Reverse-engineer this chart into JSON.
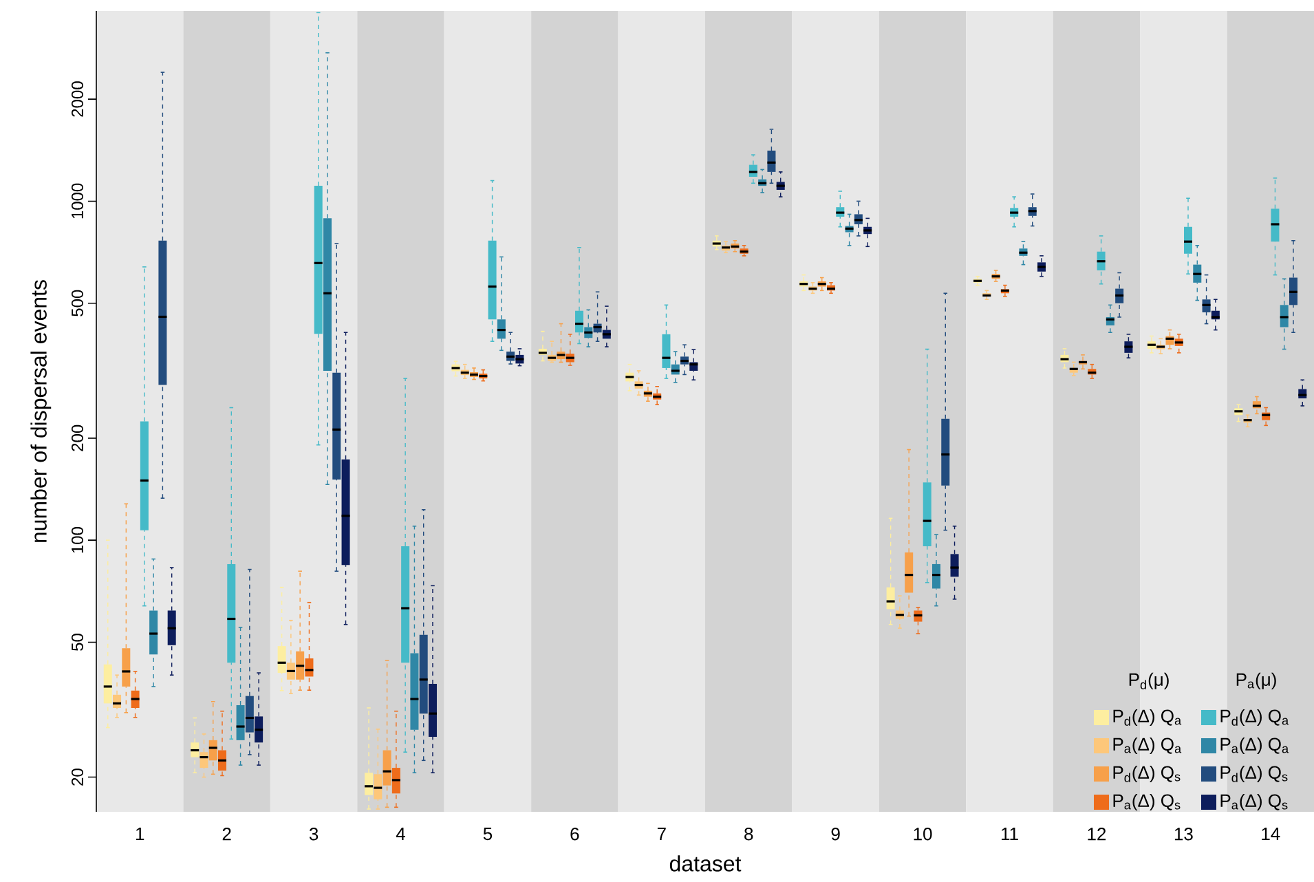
{
  "chart_data": {
    "type": "box",
    "xlabel": "dataset",
    "ylabel": "number of dispersal events",
    "categories": [
      "1",
      "2",
      "3",
      "4",
      "5",
      "6",
      "7",
      "8",
      "9",
      "10",
      "11",
      "12",
      "13",
      "14"
    ],
    "log": true,
    "ylim": [
      15.8,
      3640
    ],
    "yticks": [
      20,
      50,
      100,
      200,
      500,
      1000,
      2000
    ],
    "legend": "bottom right",
    "annotations": [
      "P$_{d}$(μ)",
      "P$_{a}$(μ)"
    ],
    "series": [
      {
        "name": "P$_{d}$(Δ) Q$_{a}$",
        "color": "#fdeea0",
        "boxes": [
          {
            "low": 28,
            "q1": 33,
            "median": 37,
            "q3": 43,
            "high": 100
          },
          {
            "low": 20.6,
            "q1": 22.9,
            "median": 24,
            "q3": 25.3,
            "high": 29.9
          },
          {
            "low": 36,
            "q1": 40.6,
            "median": 43.5,
            "q3": 48.7,
            "high": 72.6
          },
          {
            "low": 16.1,
            "q1": 17.7,
            "median": 18.8,
            "q3": 20.6,
            "high": 32
          },
          {
            "low": 305,
            "q1": 315,
            "median": 322,
            "q3": 330,
            "high": 337
          },
          {
            "low": 338,
            "q1": 352,
            "median": 357,
            "q3": 367,
            "high": 413
          },
          {
            "low": 276,
            "q1": 294,
            "median": 303,
            "q3": 312,
            "high": 330
          },
          {
            "low": 720,
            "q1": 735,
            "median": 750,
            "q3": 765,
            "high": 790
          },
          {
            "low": 545,
            "q1": 560,
            "median": 570,
            "q3": 580,
            "high": 606
          },
          {
            "low": 56.4,
            "q1": 62.6,
            "median": 66,
            "q3": 72.6,
            "high": 116
          },
          {
            "low": 565,
            "q1": 575,
            "median": 582,
            "q3": 590,
            "high": 600
          },
          {
            "low": 322,
            "q1": 335,
            "median": 342,
            "q3": 352,
            "high": 367
          },
          {
            "low": 357,
            "q1": 367,
            "median": 377,
            "q3": 386,
            "high": 400
          },
          {
            "low": 224,
            "q1": 234,
            "median": 240,
            "q3": 245,
            "high": 251
          }
        ]
      },
      {
        "name": "P$_{a}$(Δ) Q$_{a}$",
        "color": "#fdc77a",
        "boxes": [
          {
            "low": 30,
            "q1": 32,
            "median": 33,
            "q3": 35,
            "high": 40
          },
          {
            "low": 20,
            "q1": 21.3,
            "median": 22.9,
            "q3": 23.7,
            "high": 26.8
          },
          {
            "low": 35.3,
            "q1": 38.8,
            "median": 41.1,
            "q3": 43.5,
            "high": 58
          },
          {
            "low": 16.1,
            "q1": 17.2,
            "median": 18.6,
            "q3": 20.4,
            "high": 27.7
          },
          {
            "low": 300,
            "q1": 307,
            "median": 312,
            "q3": 318,
            "high": 330
          },
          {
            "low": 335,
            "q1": 338,
            "median": 345,
            "q3": 352,
            "high": 386
          },
          {
            "low": 268,
            "q1": 280,
            "median": 287,
            "q3": 294,
            "high": 316
          },
          {
            "low": 705,
            "q1": 715,
            "median": 730,
            "q3": 740,
            "high": 760
          },
          {
            "low": 535,
            "q1": 545,
            "median": 552,
            "q3": 560,
            "high": 575
          },
          {
            "low": 55,
            "q1": 58.6,
            "median": 60.2,
            "q3": 62,
            "high": 68.5
          },
          {
            "low": 513,
            "q1": 524,
            "median": 527,
            "q3": 535,
            "high": 545
          },
          {
            "low": 306,
            "q1": 312,
            "median": 320,
            "q3": 322,
            "high": 335
          },
          {
            "low": 355,
            "q1": 366,
            "median": 372,
            "q3": 377,
            "high": 393
          },
          {
            "low": 216,
            "q1": 222,
            "median": 226,
            "q3": 228,
            "high": 234
          }
        ]
      },
      {
        "name": "P$_{d}$(Δ) Q$_{s}$",
        "color": "#f7a04a",
        "boxes": [
          {
            "low": 31,
            "q1": 37,
            "median": 41,
            "q3": 48,
            "high": 128
          },
          {
            "low": 20.4,
            "q1": 22.4,
            "median": 24.4,
            "q3": 25.7,
            "high": 33.4
          },
          {
            "low": 36.1,
            "q1": 38.8,
            "median": 42.6,
            "q3": 47,
            "high": 81
          },
          {
            "low": 16.3,
            "q1": 18.9,
            "median": 20.8,
            "q3": 24,
            "high": 44.2
          },
          {
            "low": 298,
            "q1": 303,
            "median": 308,
            "q3": 313,
            "high": 322
          },
          {
            "low": 335,
            "q1": 342,
            "median": 352,
            "q3": 360,
            "high": 435
          },
          {
            "low": 257,
            "q1": 265,
            "median": 271,
            "q3": 276,
            "high": 290
          },
          {
            "low": 710,
            "q1": 725,
            "median": 735,
            "q3": 750,
            "high": 765
          },
          {
            "low": 545,
            "q1": 560,
            "median": 570,
            "q3": 580,
            "high": 595
          },
          {
            "low": 59.7,
            "q1": 70,
            "median": 79,
            "q3": 92,
            "high": 185
          },
          {
            "low": 580,
            "q1": 590,
            "median": 600,
            "q3": 610,
            "high": 625
          },
          {
            "low": 320,
            "q1": 330,
            "median": 335,
            "q3": 338,
            "high": 352
          },
          {
            "low": 367,
            "q1": 377,
            "median": 393,
            "q3": 400,
            "high": 417
          },
          {
            "low": 236,
            "q1": 245,
            "median": 249,
            "q3": 257,
            "high": 265
          }
        ]
      },
      {
        "name": "P$_{a}$(Δ) Q$_{s}$",
        "color": "#ee6c1b",
        "boxes": [
          {
            "low": 30,
            "q1": 32,
            "median": 34,
            "q3": 36,
            "high": 41
          },
          {
            "low": 20.2,
            "q1": 20.9,
            "median": 22.4,
            "q3": 24,
            "high": 31.3
          },
          {
            "low": 36.1,
            "q1": 39.6,
            "median": 41.4,
            "q3": 44.8,
            "high": 65.5
          },
          {
            "low": 16.3,
            "q1": 17.9,
            "median": 19.6,
            "q3": 21.3,
            "high": 31.3
          },
          {
            "low": 295,
            "q1": 300,
            "median": 305,
            "q3": 310,
            "high": 318
          },
          {
            "low": 328,
            "q1": 335,
            "median": 345,
            "q3": 355,
            "high": 405
          },
          {
            "low": 251,
            "q1": 260,
            "median": 265,
            "q3": 271,
            "high": 284
          },
          {
            "low": 690,
            "q1": 700,
            "median": 710,
            "q3": 725,
            "high": 740
          },
          {
            "low": 535,
            "q1": 545,
            "median": 552,
            "q3": 565,
            "high": 575
          },
          {
            "low": 53,
            "q1": 57.5,
            "median": 60,
            "q3": 62,
            "high": 63.3
          },
          {
            "low": 524,
            "q1": 535,
            "median": 545,
            "q3": 550,
            "high": 565
          },
          {
            "low": 300,
            "q1": 308,
            "median": 312,
            "q3": 320,
            "high": 330
          },
          {
            "low": 357,
            "q1": 374,
            "median": 383,
            "q3": 393,
            "high": 405
          },
          {
            "low": 218,
            "q1": 226,
            "median": 234,
            "q3": 238,
            "high": 246
          }
        ]
      },
      {
        "name": "P$_{d}$(Δ) Q$_{a}$",
        "color": "#45bac8",
        "boxes": [
          {
            "low": 64,
            "q1": 107,
            "median": 150,
            "q3": 224,
            "high": 640
          },
          {
            "low": 25.9,
            "q1": 43.5,
            "median": 58.6,
            "q3": 85,
            "high": 246
          },
          {
            "low": 191,
            "q1": 406,
            "median": 657,
            "q3": 1110,
            "high": 3600
          },
          {
            "low": 23.7,
            "q1": 43.5,
            "median": 63,
            "q3": 96,
            "high": 300
          },
          {
            "low": 386,
            "q1": 448,
            "median": 560,
            "q3": 765,
            "high": 1150
          },
          {
            "low": 380,
            "q1": 410,
            "median": 435,
            "q3": 475,
            "high": 730
          },
          {
            "low": 300,
            "q1": 322,
            "median": 345,
            "q3": 405,
            "high": 494
          },
          {
            "low": 1130,
            "q1": 1180,
            "median": 1220,
            "q3": 1280,
            "high": 1370
          },
          {
            "low": 840,
            "q1": 900,
            "median": 925,
            "q3": 960,
            "high": 1070
          },
          {
            "low": 75,
            "q1": 96,
            "median": 114,
            "q3": 148,
            "high": 366
          },
          {
            "low": 840,
            "q1": 900,
            "median": 925,
            "q3": 955,
            "high": 1030
          },
          {
            "low": 570,
            "q1": 625,
            "median": 665,
            "q3": 710,
            "high": 790
          },
          {
            "low": 610,
            "q1": 700,
            "median": 760,
            "q3": 840,
            "high": 1020
          },
          {
            "low": 606,
            "q1": 760,
            "median": 855,
            "q3": 950,
            "high": 1170
          }
        ]
      },
      {
        "name": "P$_{a}$(Δ) Q$_{a}$",
        "color": "#2f87a6",
        "boxes": [
          {
            "low": 37,
            "q1": 46,
            "median": 53,
            "q3": 62,
            "high": 88
          },
          {
            "low": 21.7,
            "q1": 25.7,
            "median": 28.2,
            "q3": 32.6,
            "high": 55.3
          },
          {
            "low": 146,
            "q1": 316,
            "median": 535,
            "q3": 890,
            "high": 2740
          },
          {
            "low": 20.6,
            "q1": 27.6,
            "median": 34,
            "q3": 46.4,
            "high": 110
          },
          {
            "low": 363,
            "q1": 393,
            "median": 417,
            "q3": 448,
            "high": 685
          },
          {
            "low": 372,
            "q1": 395,
            "median": 410,
            "q3": 425,
            "high": 478
          },
          {
            "low": 292,
            "q1": 308,
            "median": 316,
            "q3": 330,
            "high": 360
          },
          {
            "low": 1060,
            "q1": 1110,
            "median": 1130,
            "q3": 1160,
            "high": 1240
          },
          {
            "low": 740,
            "q1": 810,
            "median": 830,
            "q3": 845,
            "high": 915
          },
          {
            "low": 64,
            "q1": 72,
            "median": 79,
            "q3": 85,
            "high": 104
          },
          {
            "low": 650,
            "q1": 690,
            "median": 705,
            "q3": 725,
            "high": 760
          },
          {
            "low": 410,
            "q1": 430,
            "median": 448,
            "q3": 455,
            "high": 494
          },
          {
            "low": 510,
            "q1": 575,
            "median": 610,
            "q3": 650,
            "high": 740
          },
          {
            "low": 366,
            "q1": 425,
            "median": 455,
            "q3": 494,
            "high": 590
          }
        ]
      },
      {
        "name": "P$_{d}$(Δ) Q$_{s}$",
        "color": "#224c7e",
        "boxes": [
          {
            "low": 133,
            "q1": 287,
            "median": 456,
            "q3": 765,
            "high": 2400
          },
          {
            "low": 23.3,
            "q1": 27.1,
            "median": 29.9,
            "q3": 34.7,
            "high": 82
          },
          {
            "low": 81,
            "q1": 151,
            "median": 212,
            "q3": 312,
            "high": 750
          },
          {
            "low": 22.4,
            "q1": 30.8,
            "median": 38.8,
            "q3": 52.6,
            "high": 123
          },
          {
            "low": 331,
            "q1": 338,
            "median": 348,
            "q3": 360,
            "high": 410
          },
          {
            "low": 386,
            "q1": 410,
            "median": 425,
            "q3": 435,
            "high": 540
          },
          {
            "low": 308,
            "q1": 330,
            "median": 338,
            "q3": 348,
            "high": 377
          },
          {
            "low": 1130,
            "q1": 1220,
            "median": 1300,
            "q3": 1410,
            "high": 1630
          },
          {
            "low": 790,
            "q1": 855,
            "median": 880,
            "q3": 915,
            "high": 1000
          },
          {
            "low": 107,
            "q1": 145,
            "median": 179,
            "q3": 228,
            "high": 535
          },
          {
            "low": 845,
            "q1": 905,
            "median": 935,
            "q3": 960,
            "high": 1050
          },
          {
            "low": 455,
            "q1": 500,
            "median": 527,
            "q3": 552,
            "high": 615
          },
          {
            "low": 435,
            "q1": 470,
            "median": 494,
            "q3": 513,
            "high": 606
          },
          {
            "low": 410,
            "q1": 494,
            "median": 540,
            "q3": 595,
            "high": 765
          }
        ]
      },
      {
        "name": "P$_{a}$(Δ) Q$_{s}$",
        "color": "#0d1d5c",
        "boxes": [
          {
            "low": 40,
            "q1": 49,
            "median": 55,
            "q3": 62,
            "high": 83
          },
          {
            "low": 21.7,
            "q1": 25.3,
            "median": 27.6,
            "q3": 30.2,
            "high": 40.6
          },
          {
            "low": 56.4,
            "q1": 84.5,
            "median": 118,
            "q3": 173,
            "high": 410
          },
          {
            "low": 20.6,
            "q1": 26.3,
            "median": 30.8,
            "q3": 37.7,
            "high": 73.4
          },
          {
            "low": 327,
            "q1": 332,
            "median": 342,
            "q3": 352,
            "high": 367
          },
          {
            "low": 372,
            "q1": 393,
            "median": 405,
            "q3": 417,
            "high": 490
          },
          {
            "low": 297,
            "q1": 316,
            "median": 330,
            "q3": 335,
            "high": 365
          },
          {
            "low": 1030,
            "q1": 1080,
            "median": 1110,
            "q3": 1140,
            "high": 1220
          },
          {
            "low": 735,
            "q1": 800,
            "median": 820,
            "q3": 840,
            "high": 890
          },
          {
            "low": 67,
            "q1": 78,
            "median": 83,
            "q3": 91,
            "high": 110
          },
          {
            "low": 600,
            "q1": 620,
            "median": 640,
            "q3": 660,
            "high": 690
          },
          {
            "low": 345,
            "q1": 357,
            "median": 372,
            "q3": 386,
            "high": 405
          },
          {
            "low": 417,
            "q1": 448,
            "median": 455,
            "q3": 475,
            "high": 513
          },
          {
            "low": 249,
            "q1": 262,
            "median": 268,
            "q3": 279,
            "high": 297
          }
        ]
      }
    ]
  }
}
